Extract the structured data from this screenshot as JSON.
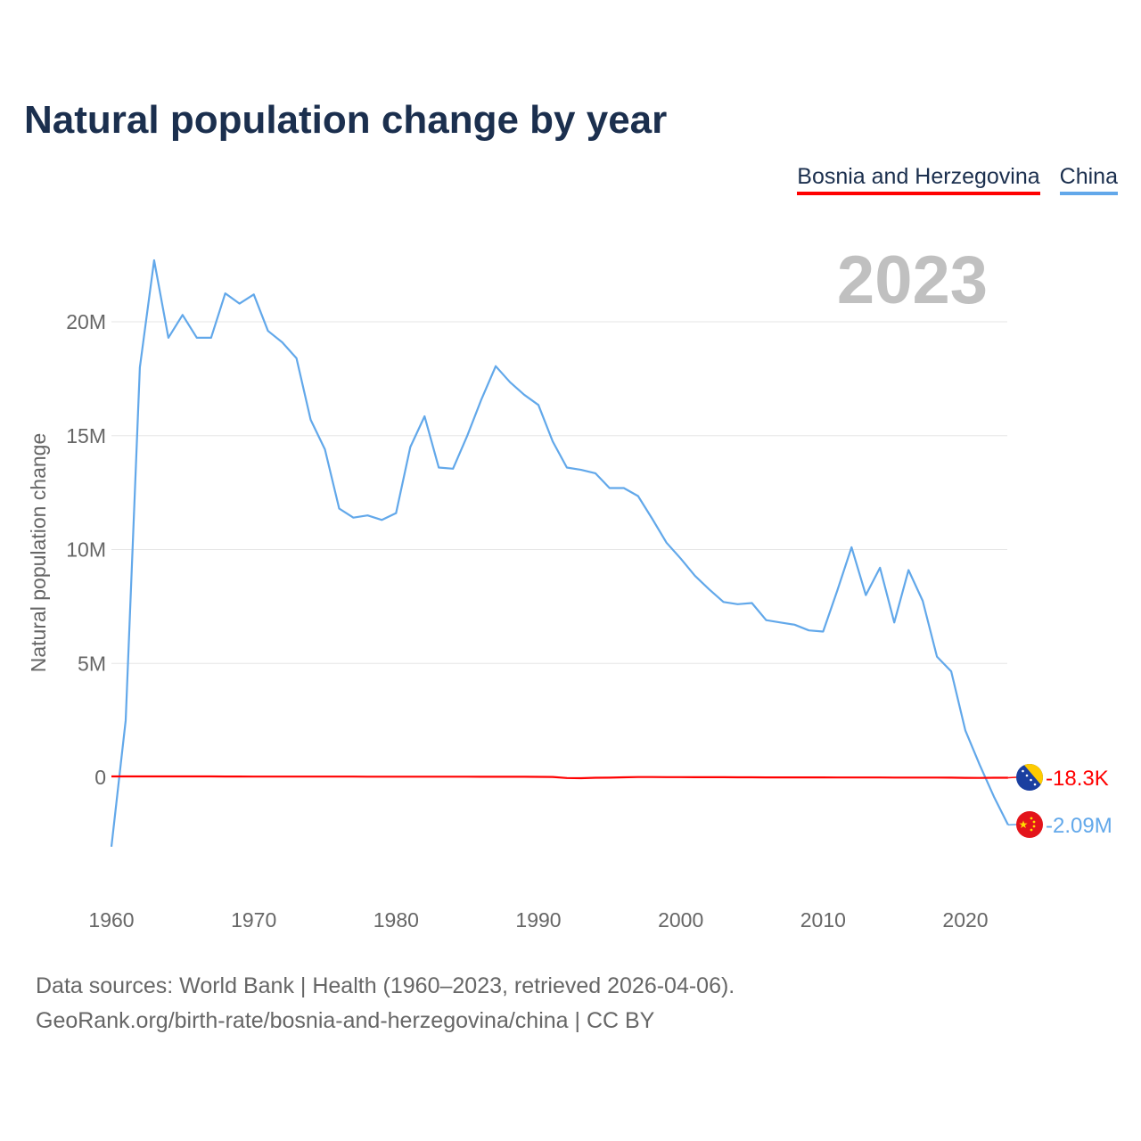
{
  "title": "Natural population change by year",
  "legend": [
    "Bosnia and Herzegovina",
    "China"
  ],
  "year_label": "2023",
  "source_lines": [
    "Data sources: World Bank | Health (1960–2023, retrieved 2026-04-06).",
    "GeoRank.org/birth-rate/bosnia-and-herzegovina/china | CC BY"
  ],
  "chart_data": {
    "type": "line",
    "title": "Natural population change by year",
    "xlabel": "",
    "ylabel": "Natural population change",
    "xlim": [
      1960,
      2023
    ],
    "ylim": [
      -3.5,
      23
    ],
    "yticks": [
      0,
      5,
      10,
      15,
      20
    ],
    "ytick_labels": [
      "0",
      "5M",
      "10M",
      "15M",
      "20M"
    ],
    "xticks": [
      1960,
      1970,
      1980,
      1990,
      2000,
      2010,
      2020
    ],
    "xtick_labels": [
      "1960",
      "1970",
      "1980",
      "1990",
      "2000",
      "2010",
      "2020"
    ],
    "grid": true,
    "legend_position": "top-right",
    "x_start": 1960,
    "series": [
      {
        "name": "Bosnia and Herzegovina",
        "color": "#ff0000",
        "end_label": "-18.3K",
        "flag": "bosnia-flag",
        "values": [
          0.04,
          0.04,
          0.04,
          0.04,
          0.04,
          0.04,
          0.04,
          0.04,
          0.035,
          0.035,
          0.03,
          0.03,
          0.03,
          0.03,
          0.03,
          0.03,
          0.03,
          0.03,
          0.028,
          0.028,
          0.028,
          0.028,
          0.028,
          0.027,
          0.027,
          0.026,
          0.025,
          0.025,
          0.024,
          0.022,
          0.02,
          0.015,
          -0.03,
          -0.04,
          -0.02,
          -0.015,
          0.0,
          0.01,
          0.01,
          0.008,
          0.006,
          0.005,
          0.004,
          0.003,
          0.001,
          -0.001,
          -0.002,
          -0.003,
          -0.003,
          -0.004,
          -0.005,
          -0.006,
          -0.007,
          -0.008,
          -0.009,
          -0.01,
          -0.011,
          -0.012,
          -0.013,
          -0.015,
          -0.022,
          -0.028,
          -0.02,
          -0.0183
        ]
      },
      {
        "name": "China",
        "color": "#62a8ea",
        "end_label": "-2.09M",
        "flag": "china-flag",
        "values": [
          -3.05,
          2.5,
          18.0,
          22.7,
          19.3,
          20.3,
          19.3,
          19.3,
          21.25,
          20.8,
          21.2,
          19.6,
          19.1,
          18.4,
          15.7,
          14.4,
          11.8,
          11.4,
          11.5,
          11.3,
          11.6,
          14.5,
          15.85,
          13.6,
          13.55,
          15.0,
          16.6,
          18.05,
          17.35,
          16.8,
          16.35,
          14.75,
          13.6,
          13.5,
          13.35,
          12.7,
          12.7,
          12.35,
          11.35,
          10.3,
          9.6,
          8.85,
          8.25,
          7.7,
          7.6,
          7.65,
          6.9,
          6.8,
          6.7,
          6.45,
          6.4,
          8.2,
          10.1,
          8.0,
          9.2,
          6.8,
          9.1,
          7.75,
          5.3,
          4.65,
          2.05,
          0.55,
          -0.85,
          -2.09
        ]
      }
    ]
  }
}
